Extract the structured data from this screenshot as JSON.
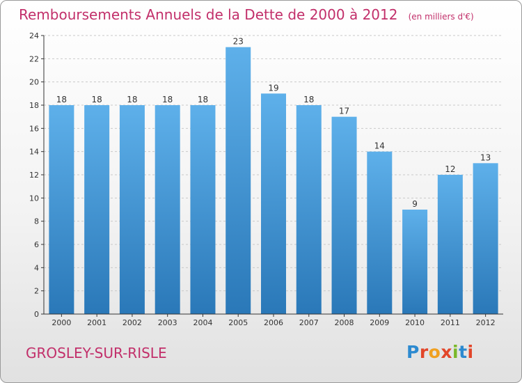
{
  "header": {
    "title": "Remboursements Annuels de la Dette de 2000 à 2012",
    "unit": "(en milliers d'€)"
  },
  "footer": {
    "place": "GROSLEY-SUR-RISLE",
    "logo": "Proxiti"
  },
  "colors": {
    "title": "#c22f6a",
    "bar_light": "#5eb0ea",
    "bar_dark": "#2a78b8",
    "axis": "#333333",
    "grid": "#c9c9c9",
    "logo_letters": [
      "#2d8ad0",
      "#e2462a",
      "#f0a020",
      "#e2462a",
      "#7ab829",
      "#2d8ad0",
      "#e2462a"
    ]
  },
  "chart_data": {
    "type": "bar",
    "categories": [
      "2000",
      "2001",
      "2002",
      "2003",
      "2004",
      "2005",
      "2006",
      "2007",
      "2008",
      "2009",
      "2010",
      "2011",
      "2012"
    ],
    "values": [
      18,
      18,
      18,
      18,
      18,
      23,
      19,
      18,
      17,
      14,
      9,
      12,
      13
    ],
    "data_labels": [
      "18",
      "18",
      "18",
      "18",
      "18",
      "23",
      "19",
      "18",
      "17",
      "14",
      "9",
      "12",
      "13"
    ],
    "title": "Remboursements Annuels de la Dette de 2000 à 2012",
    "ylim": [
      0,
      24
    ],
    "yticks": [
      0,
      2,
      4,
      6,
      8,
      10,
      12,
      14,
      16,
      18,
      20,
      22,
      24
    ],
    "grid": true
  }
}
